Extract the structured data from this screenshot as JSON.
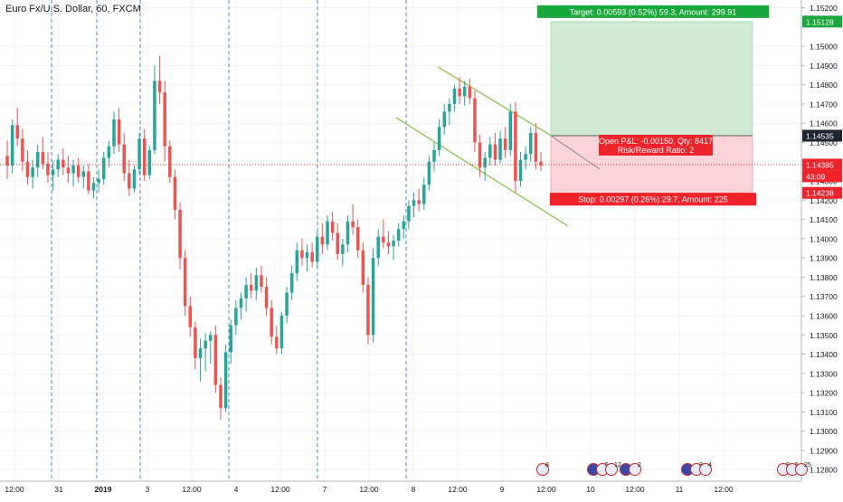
{
  "symbol_title": "Euro Fx/U.S. Dollar, 60, FXCM",
  "chart_data": {
    "type": "candlestick",
    "title": "Euro Fx/U.S. Dollar, 60, FXCM",
    "ylim": [
      1.1274,
      1.1524
    ],
    "price_ticks": [
      "1.15200",
      "1.15000",
      "1.14900",
      "1.14800",
      "1.14700",
      "1.14600",
      "1.14500",
      "1.14400",
      "1.14300",
      "1.14200",
      "1.14100",
      "1.14000",
      "1.13900",
      "1.13800",
      "1.13700",
      "1.13600",
      "1.13500",
      "1.13400",
      "1.13300",
      "1.13200",
      "1.13100",
      "1.13000",
      "1.12900",
      "1.12800"
    ],
    "time_ticks": [
      "12:00",
      "31",
      "2019",
      "3",
      "12:00",
      "4",
      "12:00",
      "7",
      "12:00",
      "8",
      "12:00",
      "9",
      "12:00",
      "10",
      "12:00",
      "11",
      "12:00"
    ],
    "candles": [
      [
        1.1443,
        1.1451,
        1.1431,
        1.1438
      ],
      [
        1.1438,
        1.1462,
        1.1434,
        1.1459
      ],
      [
        1.1459,
        1.1468,
        1.1448,
        1.1452
      ],
      [
        1.1452,
        1.1457,
        1.1435,
        1.144
      ],
      [
        1.144,
        1.1446,
        1.1428,
        1.1432
      ],
      [
        1.1432,
        1.1441,
        1.1426,
        1.1437
      ],
      [
        1.1437,
        1.1449,
        1.1432,
        1.1445
      ],
      [
        1.1445,
        1.1453,
        1.1436,
        1.1439
      ],
      [
        1.1439,
        1.1445,
        1.1429,
        1.1433
      ],
      [
        1.1433,
        1.144,
        1.1425,
        1.1436
      ],
      [
        1.1436,
        1.1444,
        1.1432,
        1.1441
      ],
      [
        1.1441,
        1.1447,
        1.1433,
        1.1437
      ],
      [
        1.1437,
        1.1443,
        1.1429,
        1.1434
      ],
      [
        1.1434,
        1.1441,
        1.1427,
        1.1438
      ],
      [
        1.1438,
        1.1442,
        1.1429,
        1.1432
      ],
      [
        1.1432,
        1.1438,
        1.1426,
        1.1435
      ],
      [
        1.1435,
        1.1439,
        1.1423,
        1.1425
      ],
      [
        1.1425,
        1.1432,
        1.1421,
        1.1429
      ],
      [
        1.1429,
        1.1436,
        1.1424,
        1.1431
      ],
      [
        1.1431,
        1.1445,
        1.1428,
        1.1442
      ],
      [
        1.1442,
        1.1451,
        1.1437,
        1.1448
      ],
      [
        1.1448,
        1.1466,
        1.1444,
        1.1462
      ],
      [
        1.1462,
        1.1468,
        1.1445,
        1.1449
      ],
      [
        1.1449,
        1.1455,
        1.143,
        1.1434
      ],
      [
        1.1434,
        1.1441,
        1.1422,
        1.1426
      ],
      [
        1.1426,
        1.1438,
        1.1424,
        1.1436
      ],
      [
        1.1436,
        1.1455,
        1.1433,
        1.1452
      ],
      [
        1.1452,
        1.1457,
        1.143,
        1.1433
      ],
      [
        1.1433,
        1.1448,
        1.1431,
        1.1446
      ],
      [
        1.1446,
        1.149,
        1.1444,
        1.1482
      ],
      [
        1.1482,
        1.1495,
        1.147,
        1.1476
      ],
      [
        1.1476,
        1.1482,
        1.144,
        1.1448
      ],
      [
        1.1448,
        1.1451,
        1.1429,
        1.1432
      ],
      [
        1.1432,
        1.1436,
        1.141,
        1.1415
      ],
      [
        1.1415,
        1.1419,
        1.1384,
        1.139
      ],
      [
        1.139,
        1.1394,
        1.136,
        1.1365
      ],
      [
        1.1365,
        1.137,
        1.1349,
        1.1354
      ],
      [
        1.1354,
        1.1357,
        1.1332,
        1.1338
      ],
      [
        1.1338,
        1.1348,
        1.1326,
        1.1343
      ],
      [
        1.1343,
        1.1351,
        1.1331,
        1.1347
      ],
      [
        1.1347,
        1.1352,
        1.1335,
        1.135
      ],
      [
        1.135,
        1.1355,
        1.132,
        1.1324
      ],
      [
        1.1324,
        1.1328,
        1.1306,
        1.1312
      ],
      [
        1.1312,
        1.1345,
        1.131,
        1.1341
      ],
      [
        1.1341,
        1.1358,
        1.1335,
        1.1355
      ],
      [
        1.1355,
        1.1368,
        1.135,
        1.1364
      ],
      [
        1.1364,
        1.1372,
        1.1358,
        1.1369
      ],
      [
        1.1369,
        1.138,
        1.1362,
        1.1376
      ],
      [
        1.1376,
        1.1382,
        1.1369,
        1.1373
      ],
      [
        1.1373,
        1.1385,
        1.1368,
        1.1381
      ],
      [
        1.1381,
        1.1386,
        1.1372,
        1.1375
      ],
      [
        1.1375,
        1.138,
        1.136,
        1.1364
      ],
      [
        1.1364,
        1.1368,
        1.1345,
        1.1349
      ],
      [
        1.1349,
        1.1355,
        1.134,
        1.1343
      ],
      [
        1.1343,
        1.1362,
        1.134,
        1.136
      ],
      [
        1.136,
        1.1375,
        1.1356,
        1.1372
      ],
      [
        1.1372,
        1.1386,
        1.1368,
        1.1382
      ],
      [
        1.1382,
        1.1398,
        1.1378,
        1.1394
      ],
      [
        1.1394,
        1.14,
        1.1386,
        1.139
      ],
      [
        1.139,
        1.1397,
        1.1383,
        1.1393
      ],
      [
        1.1393,
        1.1398,
        1.1385,
        1.1388
      ],
      [
        1.1388,
        1.1404,
        1.1385,
        1.1401
      ],
      [
        1.1401,
        1.1408,
        1.1392,
        1.1397
      ],
      [
        1.1397,
        1.1412,
        1.1394,
        1.1409
      ],
      [
        1.1409,
        1.1414,
        1.1399,
        1.1403
      ],
      [
        1.1403,
        1.1408,
        1.1389,
        1.1392
      ],
      [
        1.1392,
        1.14,
        1.1386,
        1.1397
      ],
      [
        1.1397,
        1.1412,
        1.1393,
        1.1409
      ],
      [
        1.1409,
        1.1418,
        1.1402,
        1.1406
      ],
      [
        1.1406,
        1.141,
        1.139,
        1.1394
      ],
      [
        1.1394,
        1.1398,
        1.1372,
        1.1376
      ],
      [
        1.1376,
        1.138,
        1.1345,
        1.135
      ],
      [
        1.135,
        1.1395,
        1.1346,
        1.139
      ],
      [
        1.139,
        1.1405,
        1.1386,
        1.1401
      ],
      [
        1.1401,
        1.141,
        1.1395,
        1.1398
      ],
      [
        1.1398,
        1.1404,
        1.1392,
        1.1396
      ],
      [
        1.1396,
        1.1402,
        1.1389,
        1.1399
      ],
      [
        1.1399,
        1.1408,
        1.1396,
        1.1405
      ],
      [
        1.1405,
        1.1412,
        1.14,
        1.1409
      ],
      [
        1.1409,
        1.142,
        1.1405,
        1.1417
      ],
      [
        1.1417,
        1.1424,
        1.1411,
        1.142
      ],
      [
        1.142,
        1.1426,
        1.1414,
        1.1418
      ],
      [
        1.1418,
        1.1432,
        1.1415,
        1.1428
      ],
      [
        1.1428,
        1.1443,
        1.1425,
        1.144
      ],
      [
        1.144,
        1.145,
        1.1435,
        1.1446
      ],
      [
        1.1446,
        1.1462,
        1.1443,
        1.1458
      ],
      [
        1.1458,
        1.147,
        1.1454,
        1.1466
      ],
      [
        1.1466,
        1.1473,
        1.1459,
        1.147
      ],
      [
        1.147,
        1.148,
        1.1466,
        1.1478
      ],
      [
        1.1478,
        1.1484,
        1.147,
        1.1474
      ],
      [
        1.1474,
        1.1482,
        1.1469,
        1.1479
      ],
      [
        1.1479,
        1.1483,
        1.147,
        1.1473
      ],
      [
        1.1473,
        1.1477,
        1.1445,
        1.145
      ],
      [
        1.145,
        1.1454,
        1.1432,
        1.1437
      ],
      [
        1.1437,
        1.1445,
        1.143,
        1.1442
      ],
      [
        1.1442,
        1.1453,
        1.1438,
        1.1449
      ],
      [
        1.1449,
        1.1455,
        1.1438,
        1.1441
      ],
      [
        1.1441,
        1.1456,
        1.1439,
        1.1452
      ],
      [
        1.1452,
        1.1458,
        1.1442,
        1.1446
      ],
      [
        1.1446,
        1.147,
        1.1443,
        1.1466
      ],
      [
        1.1466,
        1.1471,
        1.1424,
        1.143
      ],
      [
        1.143,
        1.1445,
        1.1427,
        1.1441
      ],
      [
        1.1441,
        1.1448,
        1.1436,
        1.1444
      ],
      [
        1.1444,
        1.1458,
        1.144,
        1.1455
      ],
      [
        1.1455,
        1.146,
        1.1436,
        1.144
      ],
      [
        1.144,
        1.1445,
        1.1435,
        1.1438
      ]
    ],
    "current_price": "1.14385",
    "countdown": "43:09",
    "position": {
      "target_label": "Target: 0.00593 (0.52%) 59.3, Amount: 299.91",
      "stop_label": "Stop: 0.00297 (0.26%) 29.7, Amount: 225",
      "open_pl_label": "Open P&L: -0.00150, Qty: 8417",
      "rr_label": "Risk/Reward Ratio: 2",
      "target_price": "1.15128",
      "entry_price": "1.14535",
      "stop_price": "1.14238"
    },
    "event_markers": [
      {
        "type": "us",
        "label": "8"
      },
      {
        "type": "eu",
        "label": ""
      },
      {
        "type": "us",
        "label": "5"
      },
      {
        "type": "us",
        "label": "12"
      },
      {
        "type": "eu",
        "label": ""
      },
      {
        "type": "us",
        "label": "2"
      },
      {
        "type": "eu",
        "label": ""
      },
      {
        "type": "us",
        "label": "3"
      },
      {
        "type": "us",
        "label": "4"
      },
      {
        "type": "us",
        "label": "9"
      },
      {
        "type": "us",
        "label": "5"
      },
      {
        "type": "us",
        "label": "25"
      }
    ],
    "colors": {
      "up": "#26a69a",
      "down": "#ef5350",
      "target_zone": "#c8e6c9",
      "stop_zone": "#ffcdd2",
      "target_tag": "#18a83b",
      "stop_tag": "#f0222a",
      "channel": "#8bc34a",
      "price_line": "#e53935",
      "entry_tag": "#1f2430",
      "session_line": "#4f86c6"
    }
  }
}
